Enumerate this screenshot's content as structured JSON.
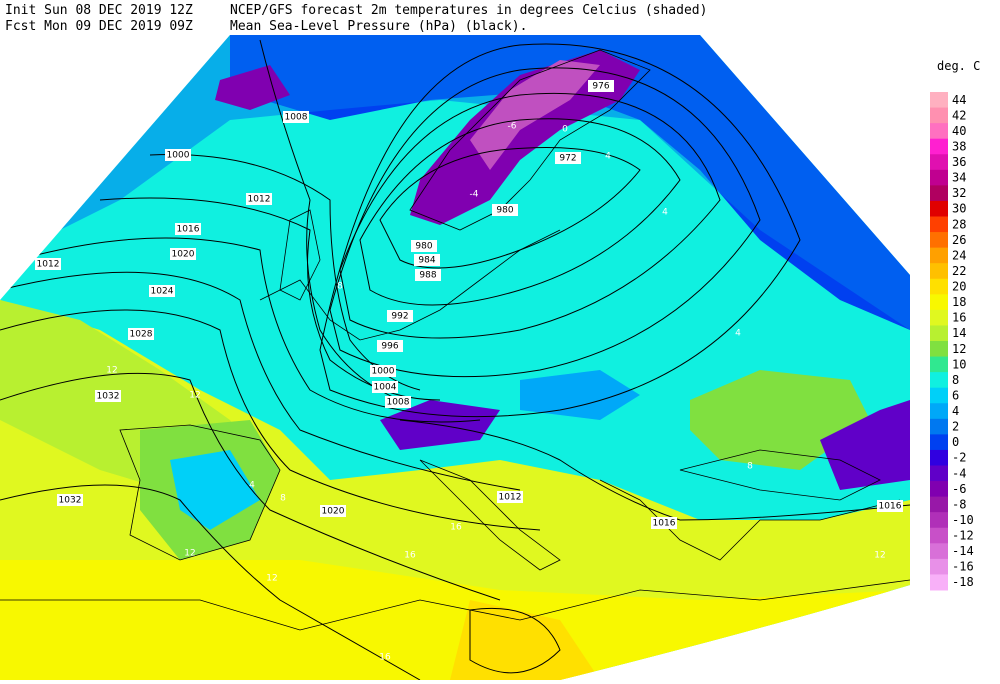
{
  "header": {
    "init": "Init  Sun 08 DEC 2019 12Z",
    "fcst": "Fcst Mon 09 DEC 2019 09Z",
    "title1": "NCEP/GFS forecast 2m temperatures in degrees Celcius (shaded)",
    "title2": "Mean Sea-Level Pressure (hPa) (black)."
  },
  "colorbar": {
    "unit": "deg. C",
    "levels": [
      44,
      42,
      40,
      38,
      36,
      34,
      32,
      30,
      28,
      26,
      24,
      22,
      20,
      18,
      16,
      14,
      12,
      10,
      8,
      6,
      4,
      2,
      0,
      -2,
      -4,
      -6,
      -8,
      -10,
      -12,
      -14,
      -16,
      -18
    ],
    "colors": [
      "#ffb0c0",
      "#ff90b0",
      "#ff70c0",
      "#ff20d0",
      "#e010b0",
      "#c00090",
      "#b00060",
      "#e00000",
      "#ff4000",
      "#ff7000",
      "#ffa000",
      "#ffc000",
      "#ffe000",
      "#f8f800",
      "#e0f820",
      "#b8f030",
      "#80e040",
      "#30e890",
      "#10f0e0",
      "#00d0f8",
      "#00a8f8",
      "#0078f0",
      "#0040f0",
      "#3000e0",
      "#6000c8",
      "#8000b0",
      "#9818a8",
      "#b030b8",
      "#c850c8",
      "#d870d8",
      "#e890e8",
      "#f8b0f8"
    ]
  },
  "map": {
    "isobar_labels": [
      "1008",
      "1000",
      "1012",
      "1016",
      "1012",
      "1020",
      "1024",
      "1028",
      "1032",
      "1032",
      "976",
      "972",
      "980",
      "980",
      "984",
      "988",
      "992",
      "996",
      "1000",
      "1004",
      "1008",
      "1020",
      "1012",
      "1016",
      "1016"
    ],
    "temperature_labels": [
      "-6",
      "-4",
      "0",
      "4",
      "4",
      "8",
      "12",
      "12",
      "4",
      "8",
      "16",
      "16",
      "12",
      "8",
      "4",
      "12",
      "16",
      "12"
    ]
  }
}
